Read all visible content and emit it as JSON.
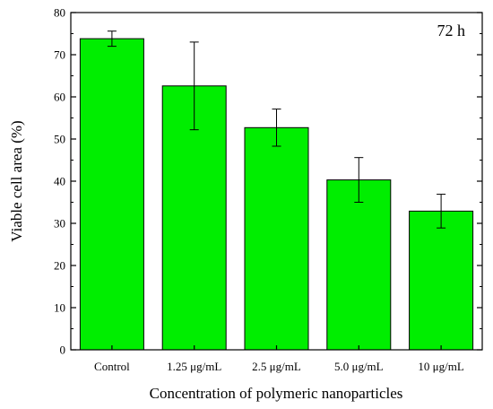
{
  "chart_data": {
    "type": "bar",
    "categories": [
      "Control",
      "1.25 μg/mL",
      "2.5 μg/mL",
      "5.0 μg/mL",
      "10 μg/mL"
    ],
    "values": [
      73.8,
      62.6,
      52.7,
      40.3,
      32.9
    ],
    "errors": [
      1.8,
      10.4,
      4.4,
      5.3,
      4.0
    ],
    "xlabel": "Concentration of polymeric nanoparticles",
    "ylabel": "Viable cell area (%)",
    "ylim": [
      0,
      80
    ],
    "yticks": [
      0,
      10,
      20,
      30,
      40,
      50,
      60,
      70,
      80
    ],
    "annotation": "72 h",
    "bar_color": "#00ee00",
    "grid": false
  }
}
